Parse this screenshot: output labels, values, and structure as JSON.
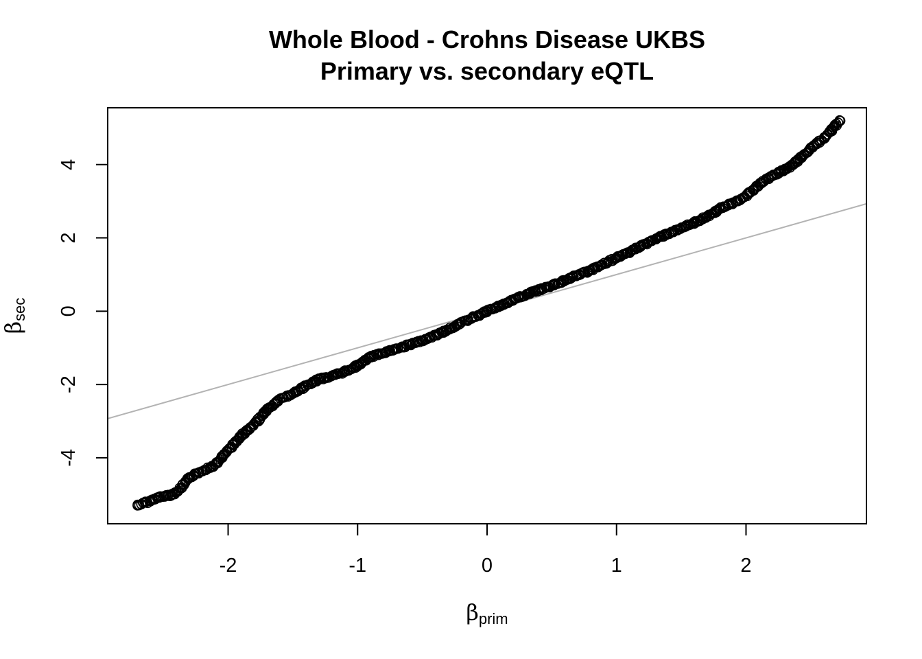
{
  "chart_data": {
    "type": "scatter",
    "title": "Whole Blood - Crohns Disease UKBS",
    "subtitle": "Primary vs. secondary eQTL",
    "xlabel": {
      "symbol": "β",
      "subscript": "prim"
    },
    "ylabel": {
      "symbol": "β",
      "subscript": "sec"
    },
    "xlim": [
      -2.93,
      2.93
    ],
    "ylim": [
      -5.8,
      5.55
    ],
    "xticks": [
      -2,
      -1,
      0,
      1,
      2
    ],
    "yticks": [
      -4,
      -2,
      0,
      2,
      4
    ],
    "grid": false,
    "legend": "none",
    "reference_line": {
      "slope": 1,
      "intercept": 0,
      "color": "#b3b3b3"
    },
    "point_color": "#000000",
    "curve": [
      [
        -2.7,
        -5.3
      ],
      [
        -2.62,
        -5.2
      ],
      [
        -2.55,
        -5.1
      ],
      [
        -2.5,
        -5.05
      ],
      [
        -2.42,
        -5.0
      ],
      [
        -2.37,
        -4.85
      ],
      [
        -2.3,
        -4.55
      ],
      [
        -2.2,
        -4.35
      ],
      [
        -2.1,
        -4.2
      ],
      [
        -2.0,
        -3.8
      ],
      [
        -1.9,
        -3.4
      ],
      [
        -1.8,
        -3.1
      ],
      [
        -1.7,
        -2.7
      ],
      [
        -1.6,
        -2.4
      ],
      [
        -1.5,
        -2.25
      ],
      [
        -1.4,
        -2.05
      ],
      [
        -1.3,
        -1.85
      ],
      [
        -1.2,
        -1.78
      ],
      [
        -1.1,
        -1.65
      ],
      [
        -1.0,
        -1.48
      ],
      [
        -0.9,
        -1.25
      ],
      [
        -0.8,
        -1.13
      ],
      [
        -0.7,
        -1.03
      ],
      [
        -0.6,
        -0.92
      ],
      [
        -0.5,
        -0.8
      ],
      [
        -0.4,
        -0.66
      ],
      [
        -0.3,
        -0.5
      ],
      [
        -0.2,
        -0.32
      ],
      [
        -0.1,
        -0.16
      ],
      [
        0.0,
        0.0
      ],
      [
        0.1,
        0.15
      ],
      [
        0.2,
        0.3
      ],
      [
        0.3,
        0.45
      ],
      [
        0.4,
        0.58
      ],
      [
        0.5,
        0.7
      ],
      [
        0.6,
        0.84
      ],
      [
        0.7,
        0.98
      ],
      [
        0.8,
        1.12
      ],
      [
        0.9,
        1.28
      ],
      [
        1.0,
        1.45
      ],
      [
        1.1,
        1.62
      ],
      [
        1.2,
        1.8
      ],
      [
        1.3,
        1.97
      ],
      [
        1.4,
        2.12
      ],
      [
        1.5,
        2.25
      ],
      [
        1.6,
        2.42
      ],
      [
        1.7,
        2.58
      ],
      [
        1.8,
        2.8
      ],
      [
        1.9,
        2.95
      ],
      [
        2.0,
        3.15
      ],
      [
        2.1,
        3.45
      ],
      [
        2.2,
        3.7
      ],
      [
        2.3,
        3.85
      ],
      [
        2.4,
        4.1
      ],
      [
        2.5,
        4.45
      ],
      [
        2.6,
        4.7
      ],
      [
        2.65,
        4.9
      ],
      [
        2.7,
        5.1
      ],
      [
        2.73,
        5.2
      ]
    ],
    "curve_points_count": 900
  }
}
